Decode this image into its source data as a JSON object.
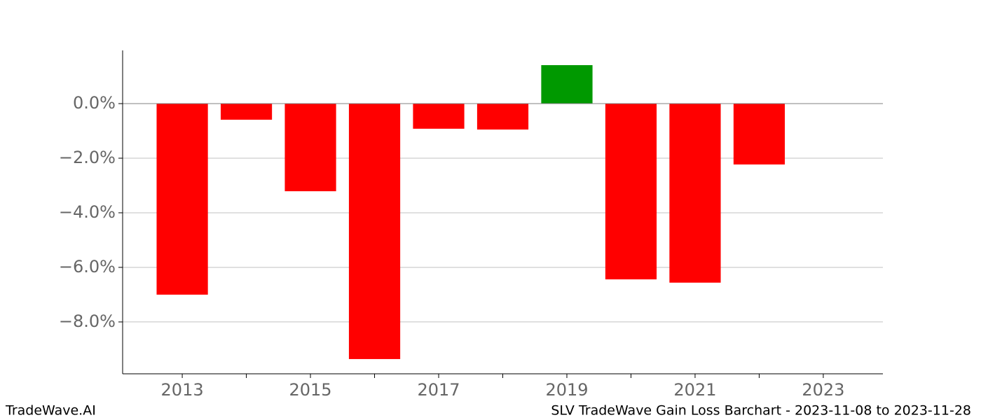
{
  "chart_data": {
    "type": "bar",
    "title": "SLV TradeWave Gain Loss Barchart - 2023-11-08 to 2023-11-28",
    "brand": "TradeWave.AI",
    "x": [
      2013,
      2014,
      2015,
      2016,
      2017,
      2018,
      2019,
      2020,
      2021,
      2022
    ],
    "values": [
      -7.0,
      -0.59,
      -3.21,
      -9.36,
      -0.92,
      -0.95,
      1.41,
      -6.44,
      -6.56,
      -2.23
    ],
    "positive_color": "#009900",
    "negative_color": "#ff0000",
    "xlim": [
      2012.07,
      2023.93
    ],
    "xticks": [
      2013,
      2015,
      2017,
      2019,
      2021,
      2023
    ],
    "xminor_ticks": [
      2014,
      2016,
      2018,
      2020,
      2022
    ],
    "ylim": [
      -9.9,
      1.95
    ],
    "yticks": [
      {
        "value": 0,
        "label": "0.0%"
      },
      {
        "value": -2,
        "label": "−2.0%"
      },
      {
        "value": -4,
        "label": "−4.0%"
      },
      {
        "value": -6,
        "label": "−6.0%"
      },
      {
        "value": -8,
        "label": "−8.0%"
      }
    ],
    "grid": true,
    "zero_line": true,
    "bar_width": 0.8
  }
}
